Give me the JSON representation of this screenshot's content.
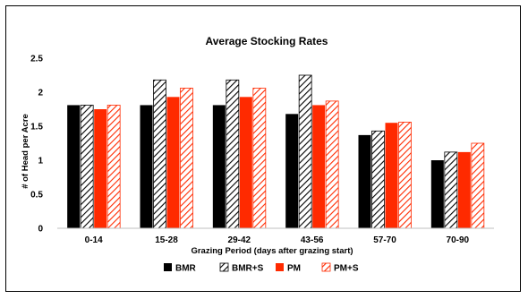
{
  "chart_data": {
    "type": "bar",
    "title": "Average Stocking Rates",
    "xlabel": "Grazing Period (days after grazing start)",
    "ylabel": "# of Head per Acre",
    "ylim": [
      0,
      2.5
    ],
    "yticks": [
      "0",
      "0.5",
      "1",
      "1.5",
      "2",
      "2.5"
    ],
    "categories": [
      "0-14",
      "15-28",
      "29-42",
      "43-56",
      "57-70",
      "70-90"
    ],
    "series": [
      {
        "name": "BMR",
        "values": [
          1.81,
          1.81,
          1.81,
          1.68,
          1.37,
          1.0
        ],
        "color": "#000000",
        "pattern": "solid"
      },
      {
        "name": "BMR+S",
        "values": [
          1.81,
          2.18,
          2.18,
          2.25,
          1.43,
          1.12
        ],
        "color": "#000000",
        "pattern": "hatch"
      },
      {
        "name": "PM",
        "values": [
          1.75,
          1.93,
          1.93,
          1.81,
          1.55,
          1.12
        ],
        "color": "#ff2a00",
        "pattern": "solid"
      },
      {
        "name": "PM+S",
        "values": [
          1.81,
          2.06,
          2.06,
          1.87,
          1.56,
          1.25
        ],
        "color": "#ff2a00",
        "pattern": "hatch"
      }
    ],
    "grid": false,
    "legend_position": "bottom"
  }
}
